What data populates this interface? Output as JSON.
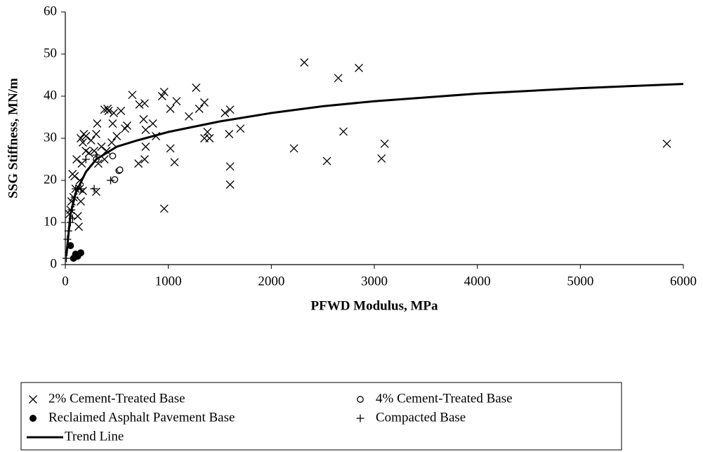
{
  "chart_data": {
    "type": "scatter",
    "x_label": "PFWD Modulus, MPa",
    "y_label": "SSG Stiffness, MN/m",
    "xlim": [
      0,
      6000
    ],
    "xticks": [
      0,
      1000,
      2000,
      3000,
      4000,
      5000,
      6000
    ],
    "ylim": [
      0,
      60
    ],
    "yticks": [
      0,
      10,
      20,
      30,
      40,
      50,
      60
    ],
    "grid": false,
    "series": [
      {
        "name": "2% Cement-Treated Base",
        "color": "#000000",
        "marker": "x",
        "x": [
          960,
          1600,
          1600,
          1590,
          1600,
          1550,
          1700,
          1400,
          1380,
          1350,
          1300,
          1270,
          1350,
          1200,
          1060,
          1080,
          1020,
          1020,
          960,
          940,
          880,
          850,
          770,
          760,
          780,
          780,
          770,
          720,
          710,
          650,
          600,
          580,
          540,
          500,
          470,
          460,
          420,
          410,
          380,
          450,
          400,
          380,
          350,
          320,
          300,
          310,
          300,
          280,
          250,
          230,
          200,
          180,
          170,
          150,
          160,
          170,
          150,
          140,
          130,
          110,
          100,
          90,
          70,
          60,
          50,
          40,
          80,
          120,
          140,
          200,
          2320,
          2650,
          2850,
          2700,
          3100,
          3070,
          2540,
          2220,
          5840
        ],
        "y": [
          13.3,
          19,
          23.3,
          31,
          36.8,
          36,
          32.3,
          30,
          31.5,
          38.5,
          37,
          42,
          30,
          35.2,
          24.3,
          38.8,
          27.6,
          37,
          41,
          40,
          30.5,
          33.5,
          38.3,
          34.5,
          32,
          28,
          25,
          38,
          24,
          40.3,
          33,
          32.3,
          36.5,
          30.5,
          36,
          33.5,
          36.5,
          37,
          36.8,
          29,
          27,
          25,
          28,
          24,
          17.3,
          33.5,
          31,
          27,
          29.5,
          26.5,
          30.5,
          31,
          29,
          30,
          24,
          17.5,
          15,
          20,
          9,
          25,
          18,
          21,
          21.5,
          15,
          13,
          12,
          16,
          11.5,
          18,
          27,
          48,
          44.3,
          46.7,
          31.6,
          28.7,
          25.2,
          24.6,
          27.6,
          28.7
        ]
      },
      {
        "name": "4% Cement-Treated Base",
        "color": "#000000",
        "marker": "o",
        "x": [
          460,
          520,
          480,
          300,
          530
        ],
        "y": [
          25.8,
          22.3,
          20.2,
          25,
          22.5
        ]
      },
      {
        "name": "Reclaimed Asphalt Pavement Base",
        "color": "#000000",
        "marker": "dot",
        "x": [
          80,
          100,
          150,
          50,
          120
        ],
        "y": [
          1.5,
          2.5,
          2.8,
          4.5,
          2
        ]
      },
      {
        "name": "Compacted Base",
        "color": "#000000",
        "marker": "+",
        "x": [
          10,
          20,
          30,
          50,
          60,
          90,
          100,
          150,
          280,
          440,
          300,
          200,
          70
        ],
        "y": [
          1.5,
          6,
          8,
          10,
          13,
          16,
          18,
          18,
          18,
          20,
          26,
          25,
          11
        ]
      },
      {
        "name": "Trend Line",
        "color": "#000000",
        "marker": "line",
        "x": [
          10,
          50,
          100,
          200,
          300,
          500,
          700,
          1000,
          1500,
          2000,
          2500,
          3000,
          4000,
          5000,
          6000
        ],
        "y": [
          2,
          12,
          17,
          22,
          25,
          28,
          29.5,
          31.5,
          34,
          36,
          37.6,
          38.8,
          40.6,
          41.9,
          42.9
        ]
      }
    ]
  }
}
